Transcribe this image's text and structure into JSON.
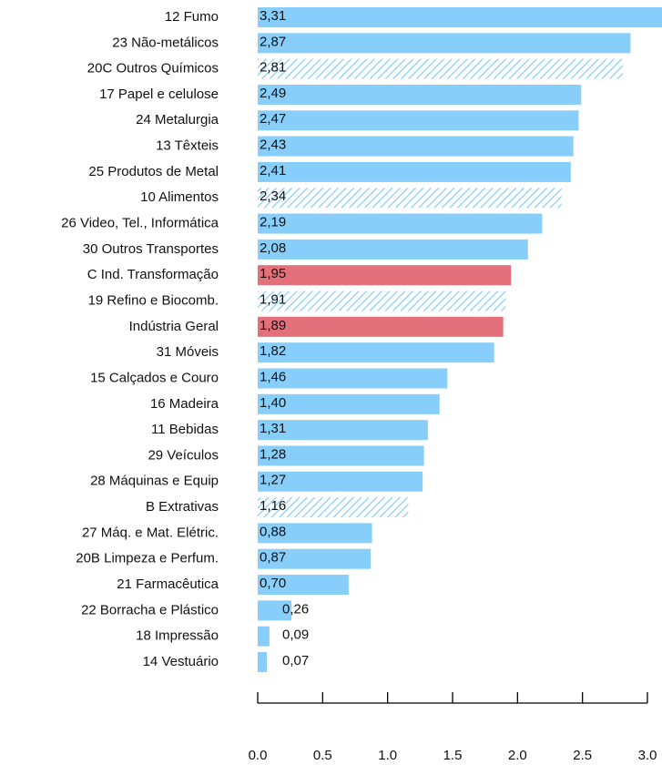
{
  "chart_data": {
    "type": "barh",
    "categories": [
      "12  Fumo",
      "23  Não-metálicos",
      "20C  Outros Químicos",
      "17  Papel e celulose",
      "24  Metalurgia",
      "13  Têxteis",
      "25  Produtos de Metal",
      "10  Alimentos",
      "26  Video, Tel., Informática",
      "30  Outros Transportes",
      "C  Ind. Transformação",
      "19  Refino e Biocomb.",
      "Indústria Geral",
      "31  Móveis",
      "15  Calçados e Couro",
      "16  Madeira",
      "11  Bebidas",
      "29  Veículos",
      "28  Máquinas e Equip",
      "B  Extrativas",
      "27  Máq. e Mat. Elétric.",
      "20B  Limpeza e Perfum.",
      "21  Farmacêutica",
      "22  Borracha e Plástico",
      "18  Impressão",
      "14  Vestuário"
    ],
    "values": [
      3.31,
      2.87,
      2.81,
      2.49,
      2.47,
      2.43,
      2.41,
      2.34,
      2.19,
      2.08,
      1.95,
      1.91,
      1.89,
      1.82,
      1.46,
      1.4,
      1.31,
      1.28,
      1.27,
      1.16,
      0.88,
      0.87,
      0.7,
      0.26,
      0.09,
      0.07
    ],
    "value_labels": [
      "3,31",
      "2,87",
      "2,81",
      "2,49",
      "2,47",
      "2,43",
      "2,41",
      "2,34",
      "2,19",
      "2,08",
      "1,95",
      "1,91",
      "1,89",
      "1,82",
      "1,46",
      "1,40",
      "1,31",
      "1,28",
      "1,27",
      "1,16",
      "0,88",
      "0,87",
      "0,70",
      "0,26",
      "0,09",
      "0,07"
    ],
    "colors": [
      "#87cefa",
      "#87cefa",
      "#87cefa",
      "#87cefa",
      "#87cefa",
      "#87cefa",
      "#87cefa",
      "#87cefa",
      "#87cefa",
      "#87cefa",
      "#e3707a",
      "#87cefa",
      "#e3707a",
      "#87cefa",
      "#87cefa",
      "#87cefa",
      "#87cefa",
      "#87cefa",
      "#87cefa",
      "#87cefa",
      "#87cefa",
      "#87cefa",
      "#87cefa",
      "#87cefa",
      "#87cefa",
      "#87cefa"
    ],
    "hatched": [
      false,
      false,
      true,
      false,
      false,
      false,
      false,
      true,
      false,
      false,
      false,
      true,
      false,
      false,
      false,
      false,
      false,
      false,
      false,
      true,
      false,
      false,
      false,
      false,
      false,
      false
    ],
    "xlim": [
      0,
      3
    ],
    "xticks": [
      {
        "value": 0,
        "label": "0.0"
      },
      {
        "value": 0.5,
        "label": "0.5"
      },
      {
        "value": 1,
        "label": "1.0"
      },
      {
        "value": 1.5,
        "label": "1.5"
      },
      {
        "value": 2,
        "label": "2.0"
      },
      {
        "value": 2.5,
        "label": "2.5"
      },
      {
        "value": 3,
        "label": "3.0"
      }
    ]
  }
}
